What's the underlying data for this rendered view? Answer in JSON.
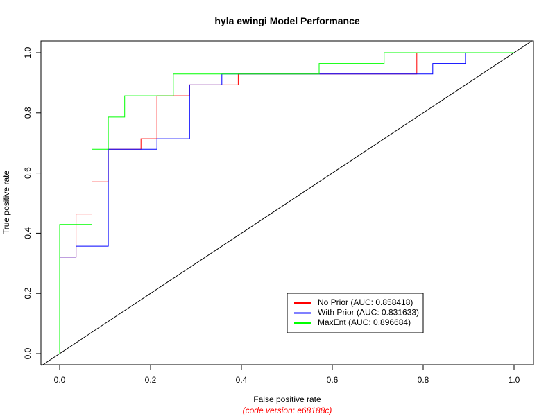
{
  "chart_data": {
    "type": "line",
    "title": "hyla ewingi Model Performance",
    "xlabel": "False positive rate",
    "ylabel": "True positive rate",
    "subtitle": "(code version: e68188c)",
    "subtitle_color": "#ff0000",
    "xlim": [
      0,
      1
    ],
    "ylim": [
      0,
      1
    ],
    "x_ticks": [
      "0.0",
      "0.2",
      "0.4",
      "0.6",
      "0.8",
      "1.0"
    ],
    "y_ticks": [
      "0.0",
      "0.2",
      "0.4",
      "0.6",
      "0.8",
      "1.0"
    ],
    "grid": false,
    "legend_position": "bottom-right",
    "reference_line": {
      "x": [
        -0.04,
        1.04
      ],
      "y": [
        -0.04,
        1.04
      ],
      "color": "#000000"
    },
    "series": [
      {
        "name": "No Prior (AUC: 0.858418)",
        "color": "#ff0000",
        "x": [
          0.0,
          0.0,
          0.036,
          0.036,
          0.071,
          0.071,
          0.107,
          0.107,
          0.179,
          0.179,
          0.214,
          0.214,
          0.286,
          0.286,
          0.357,
          0.357,
          0.393,
          0.393,
          0.786,
          0.786,
          1.0
        ],
        "y": [
          0.0,
          0.321,
          0.321,
          0.464,
          0.464,
          0.571,
          0.571,
          0.679,
          0.679,
          0.714,
          0.714,
          0.857,
          0.857,
          0.893,
          0.893,
          0.893,
          0.893,
          0.929,
          0.929,
          1.0,
          1.0
        ]
      },
      {
        "name": "With Prior (AUC: 0.831633)",
        "color": "#0000ff",
        "x": [
          0.0,
          0.0,
          0.036,
          0.036,
          0.107,
          0.107,
          0.214,
          0.214,
          0.286,
          0.286,
          0.357,
          0.357,
          0.821,
          0.821,
          0.893,
          0.893,
          1.0
        ],
        "y": [
          0.0,
          0.321,
          0.321,
          0.357,
          0.357,
          0.679,
          0.679,
          0.714,
          0.714,
          0.893,
          0.893,
          0.929,
          0.929,
          0.964,
          0.964,
          1.0,
          1.0
        ]
      },
      {
        "name": "MaxEnt (AUC: 0.896684)",
        "color": "#00ff00",
        "x": [
          0.0,
          0.0,
          0.071,
          0.071,
          0.107,
          0.107,
          0.143,
          0.143,
          0.25,
          0.25,
          0.571,
          0.571,
          0.714,
          0.714,
          1.0
        ],
        "y": [
          0.0,
          0.429,
          0.429,
          0.679,
          0.679,
          0.786,
          0.786,
          0.857,
          0.857,
          0.929,
          0.929,
          0.964,
          0.964,
          1.0,
          1.0
        ]
      }
    ]
  }
}
